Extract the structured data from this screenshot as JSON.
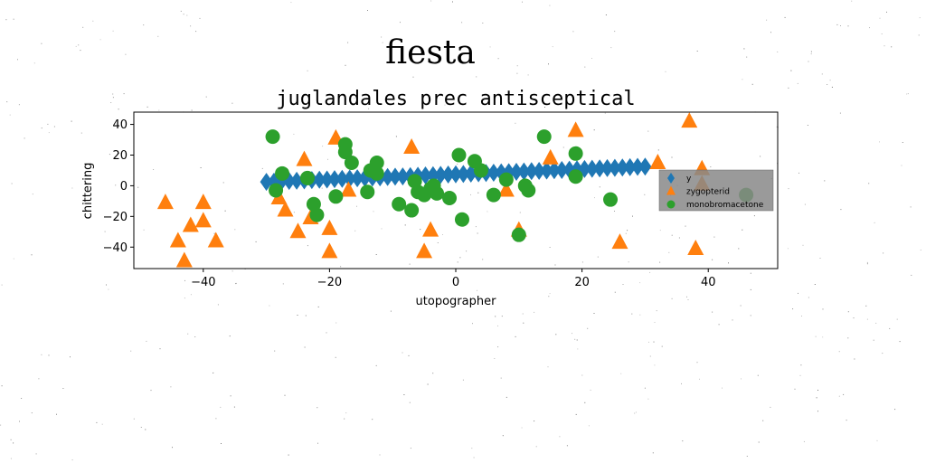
{
  "figure_title": "fiesta",
  "chart_data": {
    "type": "scatter",
    "title": "juglandales prec antisceptical",
    "xlabel": "utopographer",
    "ylabel": "chittering",
    "xlim": [
      -51,
      51
    ],
    "ylim": [
      -54,
      48
    ],
    "xticks": [
      -40,
      -20,
      0,
      20,
      40
    ],
    "yticks": [
      -40,
      -20,
      0,
      20,
      40
    ],
    "grid": false,
    "legend_position": "center-right",
    "series": [
      {
        "name": "y",
        "marker": "diamond",
        "color": "#1f77b4",
        "points": [
          [
            -30.0,
            2.5
          ],
          [
            -28.8,
            2.7
          ],
          [
            -27.6,
            2.9
          ],
          [
            -26.4,
            3.1
          ],
          [
            -25.2,
            3.3
          ],
          [
            -24.0,
            3.5
          ],
          [
            -22.8,
            3.7
          ],
          [
            -21.6,
            3.9
          ],
          [
            -20.4,
            4.1
          ],
          [
            -19.2,
            4.3
          ],
          [
            -18.0,
            4.5
          ],
          [
            -16.8,
            4.7
          ],
          [
            -15.6,
            4.9
          ],
          [
            -14.4,
            5.1
          ],
          [
            -13.2,
            5.3
          ],
          [
            -12.0,
            5.5
          ],
          [
            -10.8,
            5.7
          ],
          [
            -9.6,
            5.9
          ],
          [
            -8.4,
            6.1
          ],
          [
            -7.2,
            6.3
          ],
          [
            -6.0,
            6.5
          ],
          [
            -4.8,
            6.7
          ],
          [
            -3.6,
            6.9
          ],
          [
            -2.4,
            7.1
          ],
          [
            -1.2,
            7.3
          ],
          [
            0.0,
            7.5
          ],
          [
            1.2,
            7.7
          ],
          [
            2.4,
            7.9
          ],
          [
            3.6,
            8.1
          ],
          [
            4.8,
            8.3
          ],
          [
            6.0,
            8.5
          ],
          [
            7.2,
            8.7
          ],
          [
            8.4,
            8.9
          ],
          [
            9.6,
            9.1
          ],
          [
            10.8,
            9.3
          ],
          [
            12.0,
            9.5
          ],
          [
            13.2,
            9.7
          ],
          [
            14.4,
            9.9
          ],
          [
            15.6,
            10.1
          ],
          [
            16.8,
            10.3
          ],
          [
            18.0,
            10.5
          ],
          [
            19.2,
            10.7
          ],
          [
            20.4,
            10.9
          ],
          [
            21.6,
            11.1
          ],
          [
            22.8,
            11.3
          ],
          [
            24.0,
            11.5
          ],
          [
            25.2,
            11.7
          ],
          [
            26.4,
            11.9
          ],
          [
            27.6,
            12.1
          ],
          [
            28.8,
            12.3
          ],
          [
            30.0,
            12.5
          ]
        ]
      },
      {
        "name": "zygopterid",
        "marker": "triangle",
        "color": "#ff7f0e",
        "points": [
          [
            -46,
            -11
          ],
          [
            -44,
            -36
          ],
          [
            -43,
            -49
          ],
          [
            -42,
            -26
          ],
          [
            -40,
            -23
          ],
          [
            -40,
            -11
          ],
          [
            -38,
            -36
          ],
          [
            -28,
            -8
          ],
          [
            -27,
            -16
          ],
          [
            -25,
            -30
          ],
          [
            -24,
            17
          ],
          [
            -23,
            -21
          ],
          [
            -20,
            -28
          ],
          [
            -20,
            -43
          ],
          [
            -19,
            31
          ],
          [
            -17,
            -3
          ],
          [
            -7,
            25
          ],
          [
            -5,
            -43
          ],
          [
            -4,
            -29
          ],
          [
            8,
            -3
          ],
          [
            10,
            -29
          ],
          [
            15,
            18
          ],
          [
            19,
            36
          ],
          [
            26,
            -37
          ],
          [
            32,
            15
          ],
          [
            37,
            42
          ],
          [
            38,
            -41
          ],
          [
            39,
            11
          ],
          [
            39,
            1
          ]
        ]
      },
      {
        "name": "monobromacetone",
        "marker": "circle",
        "color": "#2ca02c",
        "points": [
          [
            -29,
            32
          ],
          [
            -28.5,
            -3
          ],
          [
            -27.5,
            8
          ],
          [
            -23.5,
            5
          ],
          [
            -22.5,
            -12
          ],
          [
            -22,
            -19
          ],
          [
            -19,
            -7
          ],
          [
            -17.5,
            27
          ],
          [
            -17.5,
            22
          ],
          [
            -16.5,
            15
          ],
          [
            -14,
            -4
          ],
          [
            -13.5,
            10
          ],
          [
            -12.5,
            8
          ],
          [
            -12.5,
            15
          ],
          [
            -9,
            -12
          ],
          [
            -7,
            -16
          ],
          [
            -6.5,
            3
          ],
          [
            -6,
            -4
          ],
          [
            -5,
            -6
          ],
          [
            -4,
            -2
          ],
          [
            -3.5,
            0
          ],
          [
            -3,
            -5
          ],
          [
            -1,
            -8
          ],
          [
            0.5,
            20
          ],
          [
            1,
            -22
          ],
          [
            3,
            16
          ],
          [
            4,
            10
          ],
          [
            6,
            -6
          ],
          [
            8,
            4
          ],
          [
            10,
            -32
          ],
          [
            11,
            0
          ],
          [
            11.5,
            -3
          ],
          [
            14,
            32
          ],
          [
            19,
            21
          ],
          [
            19,
            6
          ],
          [
            24.5,
            -9
          ],
          [
            46,
            -6
          ]
        ]
      }
    ]
  }
}
